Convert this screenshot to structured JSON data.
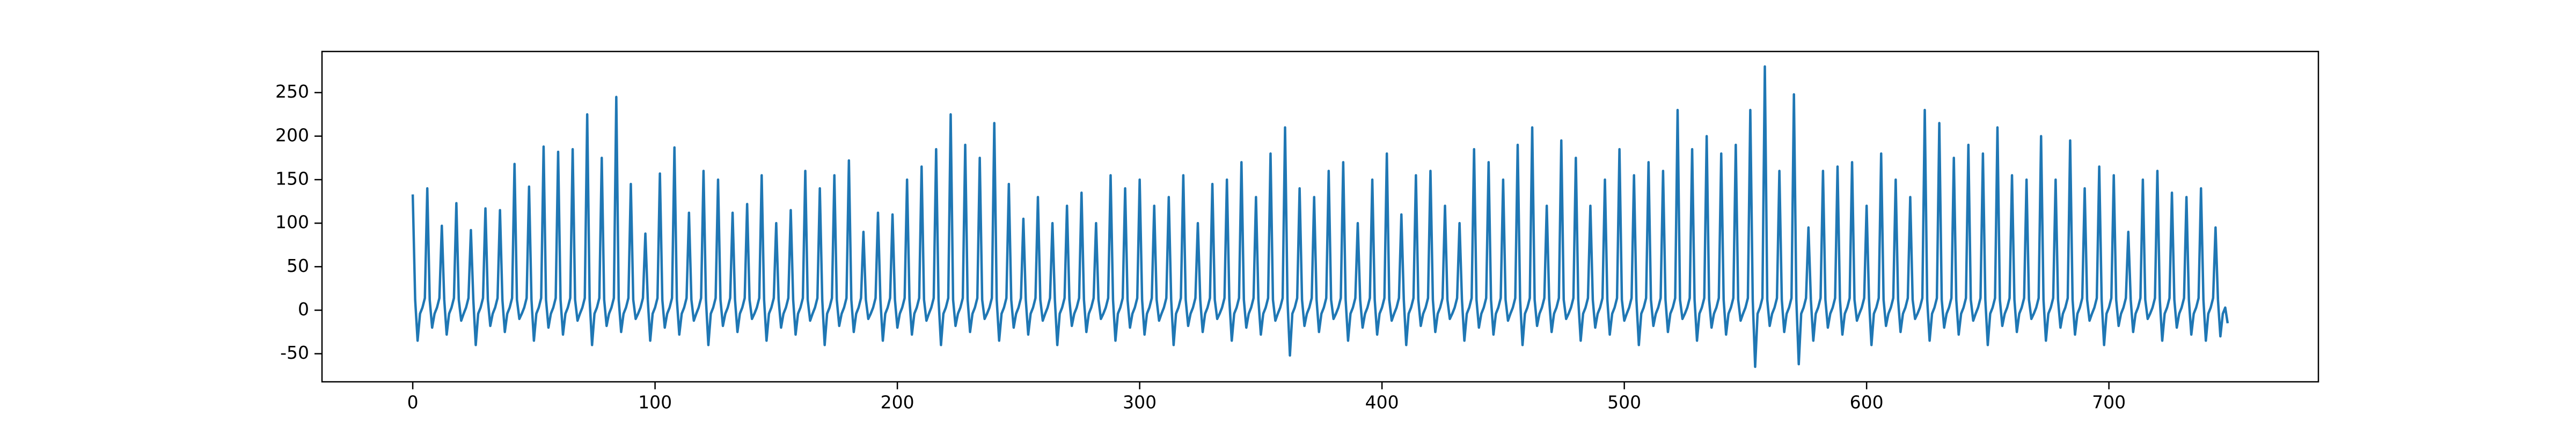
{
  "chart_data": {
    "type": "line",
    "xlim": [
      -37.45,
      786.45
    ],
    "xticks": [
      0,
      100,
      200,
      300,
      400,
      500,
      600,
      700
    ],
    "ylim": [
      -82.25,
      297.25
    ],
    "yticks": [
      -50,
      0,
      50,
      100,
      150,
      200,
      250
    ],
    "series": [
      {
        "color": "#1f77b4",
        "values": [
          133,
          12,
          -35,
          -4,
          3,
          14,
          140,
          12,
          -20,
          -4,
          3,
          14,
          97,
          12,
          -28,
          -4,
          3,
          14,
          123,
          12,
          -12,
          -4,
          3,
          14,
          92,
          12,
          -40,
          -4,
          3,
          14,
          117,
          12,
          -18,
          -4,
          3,
          14,
          115,
          12,
          -25,
          -4,
          3,
          14,
          168,
          12,
          -10,
          -4,
          3,
          14,
          142,
          12,
          -35,
          -4,
          3,
          14,
          188,
          12,
          -20,
          -4,
          3,
          14,
          182,
          12,
          -28,
          -4,
          3,
          14,
          185,
          12,
          -12,
          -4,
          3,
          14,
          225,
          12,
          -40,
          -4,
          3,
          14,
          175,
          12,
          -18,
          -4,
          3,
          14,
          245,
          12,
          -25,
          -4,
          3,
          14,
          145,
          12,
          -10,
          -4,
          3,
          14,
          88,
          12,
          -35,
          -4,
          3,
          14,
          157,
          12,
          -20,
          -4,
          3,
          14,
          187,
          12,
          -28,
          -4,
          3,
          14,
          112,
          12,
          -12,
          -4,
          3,
          14,
          160,
          12,
          -40,
          -4,
          3,
          14,
          150,
          12,
          -18,
          -4,
          3,
          14,
          112,
          12,
          -25,
          -4,
          3,
          14,
          122,
          12,
          -10,
          -4,
          3,
          14,
          155,
          12,
          -35,
          -4,
          3,
          14,
          100,
          12,
          -20,
          -4,
          3,
          14,
          115,
          12,
          -28,
          -4,
          3,
          14,
          160,
          12,
          -12,
          -4,
          3,
          14,
          140,
          12,
          -40,
          -4,
          3,
          14,
          155,
          12,
          -18,
          -4,
          3,
          14,
          172,
          12,
          -25,
          -4,
          3,
          14,
          90,
          12,
          -10,
          -4,
          3,
          14,
          112,
          12,
          -35,
          -4,
          3,
          14,
          110,
          12,
          -20,
          -4,
          3,
          14,
          150,
          12,
          -28,
          -4,
          3,
          14,
          165,
          12,
          -12,
          -4,
          3,
          14,
          185,
          12,
          -40,
          -4,
          3,
          14,
          225,
          12,
          -18,
          -4,
          3,
          14,
          190,
          12,
          -25,
          -4,
          3,
          14,
          175,
          12,
          -10,
          -4,
          3,
          14,
          215,
          12,
          -35,
          -4,
          3,
          14,
          145,
          12,
          -20,
          -4,
          3,
          14,
          105,
          12,
          -28,
          -4,
          3,
          14,
          130,
          12,
          -12,
          -4,
          3,
          14,
          100,
          12,
          -40,
          -4,
          3,
          14,
          120,
          12,
          -18,
          -4,
          3,
          14,
          135,
          12,
          -25,
          -4,
          3,
          14,
          100,
          12,
          -10,
          -4,
          3,
          14,
          155,
          12,
          -35,
          -4,
          3,
          14,
          140,
          12,
          -20,
          -4,
          3,
          14,
          150,
          12,
          -28,
          -4,
          3,
          14,
          120,
          12,
          -12,
          -4,
          3,
          14,
          130,
          12,
          -40,
          -4,
          3,
          14,
          155,
          12,
          -18,
          -4,
          3,
          14,
          100,
          12,
          -25,
          -4,
          3,
          14,
          145,
          12,
          -10,
          -4,
          3,
          14,
          150,
          12,
          -35,
          -4,
          3,
          14,
          170,
          12,
          -20,
          -4,
          3,
          14,
          130,
          12,
          -28,
          -4,
          3,
          14,
          180,
          12,
          -12,
          -4,
          3,
          14,
          210,
          12,
          -52,
          -4,
          3,
          14,
          140,
          12,
          -18,
          -4,
          3,
          14,
          130,
          12,
          -25,
          -4,
          3,
          14,
          160,
          12,
          -10,
          -4,
          3,
          14,
          170,
          12,
          -35,
          -4,
          3,
          14,
          100,
          12,
          -20,
          -4,
          3,
          14,
          150,
          12,
          -28,
          -4,
          3,
          14,
          180,
          12,
          -12,
          -4,
          3,
          14,
          110,
          12,
          -40,
          -4,
          3,
          14,
          155,
          12,
          -18,
          -4,
          3,
          14,
          160,
          12,
          -25,
          -4,
          3,
          14,
          120,
          12,
          -10,
          -4,
          3,
          14,
          100,
          12,
          -35,
          -4,
          3,
          14,
          185,
          12,
          -20,
          -4,
          3,
          14,
          170,
          12,
          -28,
          -4,
          3,
          14,
          150,
          12,
          -12,
          -4,
          3,
          14,
          190,
          12,
          -40,
          -4,
          3,
          14,
          210,
          12,
          -18,
          -4,
          3,
          14,
          120,
          12,
          -25,
          -4,
          3,
          14,
          195,
          12,
          -10,
          -4,
          3,
          14,
          175,
          12,
          -35,
          -4,
          3,
          14,
          120,
          12,
          -20,
          -4,
          3,
          14,
          150,
          12,
          -28,
          -4,
          3,
          14,
          185,
          12,
          -12,
          -4,
          3,
          14,
          155,
          12,
          -40,
          -4,
          3,
          14,
          170,
          12,
          -18,
          -4,
          3,
          14,
          160,
          12,
          -25,
          -4,
          3,
          14,
          230,
          12,
          -10,
          -4,
          3,
          14,
          185,
          12,
          -35,
          -4,
          3,
          14,
          200,
          12,
          -20,
          -4,
          3,
          14,
          180,
          12,
          -28,
          -4,
          3,
          14,
          190,
          12,
          -12,
          -4,
          3,
          14,
          230,
          12,
          -65,
          -4,
          3,
          14,
          280,
          12,
          -18,
          -4,
          3,
          14,
          160,
          12,
          -25,
          -4,
          3,
          14,
          248,
          12,
          -62,
          -4,
          3,
          14,
          95,
          12,
          -35,
          -4,
          3,
          14,
          160,
          12,
          -20,
          -4,
          3,
          14,
          165,
          12,
          -28,
          -4,
          3,
          14,
          170,
          12,
          -12,
          -4,
          3,
          14,
          120,
          12,
          -40,
          -4,
          3,
          14,
          180,
          12,
          -18,
          -4,
          3,
          14,
          150,
          12,
          -25,
          -4,
          3,
          14,
          130,
          12,
          -10,
          -4,
          3,
          14,
          230,
          12,
          -35,
          -4,
          3,
          14,
          215,
          12,
          -20,
          -4,
          3,
          14,
          175,
          12,
          -28,
          -4,
          3,
          14,
          190,
          12,
          -12,
          -4,
          3,
          14,
          180,
          12,
          -40,
          -4,
          3,
          14,
          210,
          12,
          -18,
          -4,
          3,
          14,
          155,
          12,
          -25,
          -4,
          3,
          14,
          150,
          12,
          -10,
          -4,
          3,
          14,
          200,
          12,
          -35,
          -4,
          3,
          14,
          150,
          12,
          -20,
          -4,
          3,
          14,
          195,
          12,
          -28,
          -4,
          3,
          14,
          140,
          12,
          -12,
          -4,
          3,
          14,
          165,
          12,
          -40,
          -4,
          3,
          14,
          155,
          12,
          -18,
          -4,
          3,
          14,
          90,
          12,
          -25,
          -4,
          3,
          14,
          150,
          12,
          -10,
          -4,
          3,
          14,
          160,
          12,
          -35,
          -4,
          3,
          14,
          135,
          12,
          -20,
          -4,
          3,
          14,
          130,
          12,
          -28,
          -4,
          3,
          14,
          140,
          12,
          -35,
          -4,
          3,
          14,
          95,
          12,
          -30,
          -4,
          3,
          -15
        ]
      }
    ]
  }
}
